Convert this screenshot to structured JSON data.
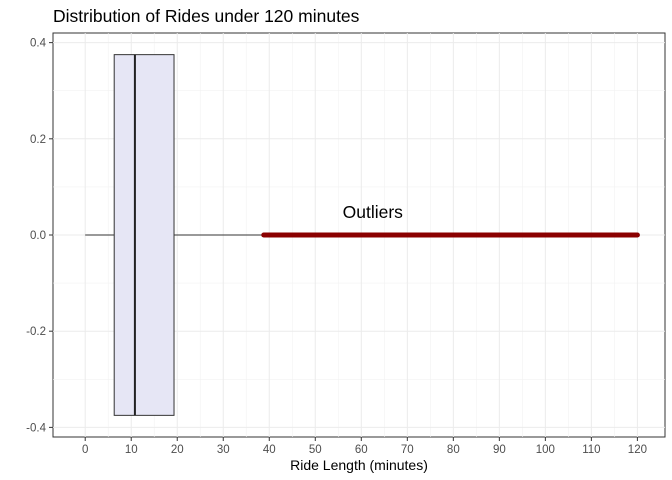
{
  "chart_data": {
    "type": "boxplot",
    "title": "Distribution of Rides under 120 minutes",
    "xlabel": "Ride Length (minutes)",
    "ylabel": "",
    "xlim": [
      -7,
      126
    ],
    "ylim": [
      -0.42,
      0.42
    ],
    "x_ticks": [
      0,
      10,
      20,
      30,
      40,
      50,
      60,
      70,
      80,
      90,
      100,
      110,
      120
    ],
    "y_ticks": [
      -0.4,
      -0.2,
      0.0,
      0.2,
      0.4
    ],
    "y_tick_labels": [
      "-0.4",
      "-0.2",
      "0.0",
      "0.2",
      "0.4"
    ],
    "box": {
      "whisker_low": 0.0,
      "q1": 6.3,
      "median": 10.8,
      "q3": 19.3,
      "whisker_high": 38.8,
      "y_center": 0.0,
      "y_half_width": 0.375,
      "fill": "#e6e6f5",
      "stroke": "#333333"
    },
    "outliers": {
      "from": 38.8,
      "to": 120,
      "y": 0.0,
      "color": "#8b0000"
    },
    "annotations": [
      {
        "text": "Outliers",
        "x": 62.5,
        "y": 0.035
      }
    ],
    "grid": true
  }
}
